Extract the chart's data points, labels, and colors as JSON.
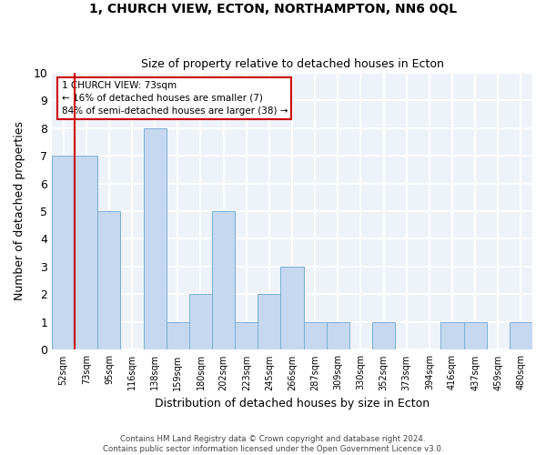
{
  "title": "1, CHURCH VIEW, ECTON, NORTHAMPTON, NN6 0QL",
  "subtitle": "Size of property relative to detached houses in Ecton",
  "xlabel": "Distribution of detached houses by size in Ecton",
  "ylabel": "Number of detached properties",
  "categories": [
    "52sqm",
    "73sqm",
    "95sqm",
    "116sqm",
    "138sqm",
    "159sqm",
    "180sqm",
    "202sqm",
    "223sqm",
    "245sqm",
    "266sqm",
    "287sqm",
    "309sqm",
    "330sqm",
    "352sqm",
    "373sqm",
    "394sqm",
    "416sqm",
    "437sqm",
    "459sqm",
    "480sqm"
  ],
  "values": [
    7,
    7,
    5,
    0,
    8,
    1,
    2,
    5,
    1,
    2,
    3,
    1,
    1,
    0,
    1,
    0,
    0,
    1,
    1,
    0,
    1
  ],
  "bar_color": "#c5d8f0",
  "bar_edgecolor": "#7badd4",
  "red_line_index": 1,
  "red_line_color": "#cc0000",
  "ylim": [
    0,
    10
  ],
  "yticks": [
    0,
    1,
    2,
    3,
    4,
    5,
    6,
    7,
    8,
    9,
    10
  ],
  "legend_title": "1 CHURCH VIEW: 73sqm",
  "legend_line1": "← 16% of detached houses are smaller (7)",
  "legend_line2": "84% of semi-detached houses are larger (38) →",
  "legend_edgecolor": "#cc0000",
  "footer_line1": "Contains HM Land Registry data © Crown copyright and database right 2024.",
  "footer_line2": "Contains public sector information licensed under the Open Government Licence v3.0.",
  "bg_color": "#eef2f9",
  "grid_color": "#ffffff"
}
